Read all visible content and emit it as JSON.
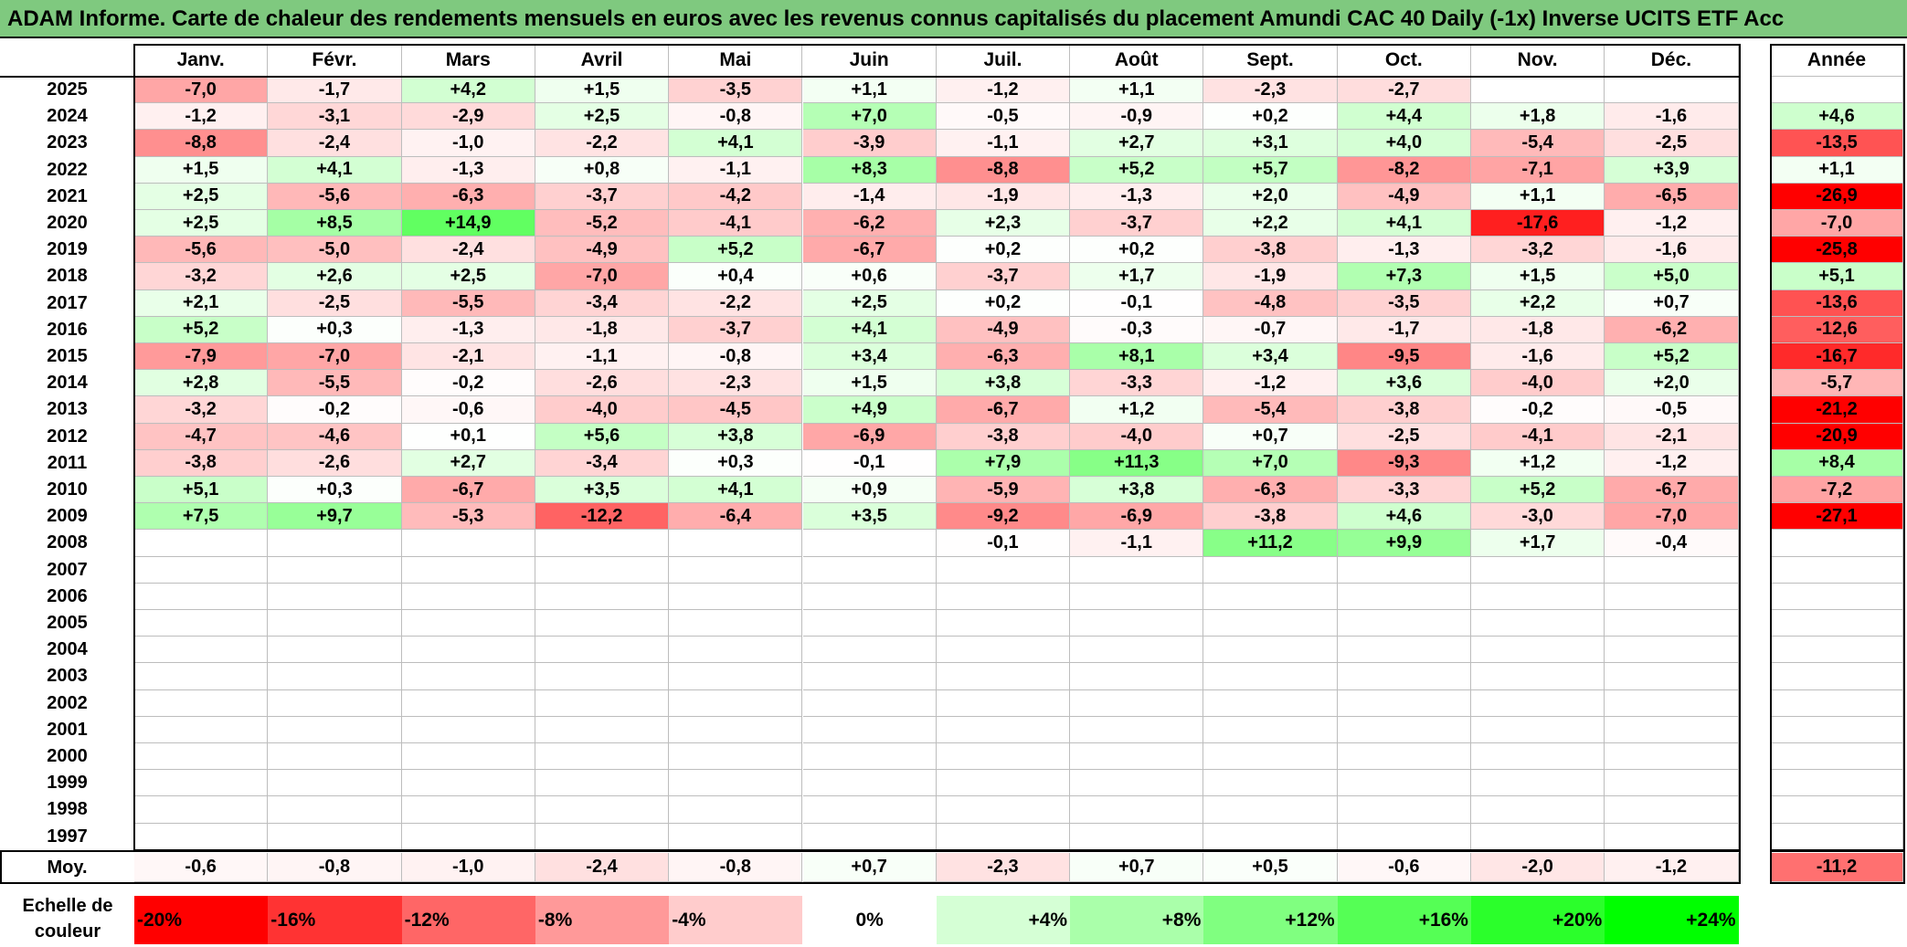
{
  "title": "ADAM Informe. Carte de chaleur des rendements mensuels en euros avec les revenus connus capitalisés du placement Amundi CAC 40 Daily (-1x) Inverse UCITS ETF Acc",
  "colors": {
    "title_bg": "#7fc97f",
    "positive": "#00ff00",
    "negative": "#ff0000"
  },
  "chart_data": {
    "type": "heatmap",
    "months": [
      "Janv.",
      "Févr.",
      "Mars",
      "Avril",
      "Mai",
      "Juin",
      "Juil.",
      "Août",
      "Sept.",
      "Oct.",
      "Nov.",
      "Déc."
    ],
    "annual_header": "Année",
    "rows": [
      {
        "year": "2025",
        "values": [
          "-7,0",
          "-1,7",
          "+4,2",
          "+1,5",
          "-3,5",
          "+1,1",
          "-1,2",
          "+1,1",
          "-2,3",
          "-2,7",
          "",
          ""
        ],
        "annual": ""
      },
      {
        "year": "2024",
        "values": [
          "-1,2",
          "-3,1",
          "-2,9",
          "+2,5",
          "-0,8",
          "+7,0",
          "-0,5",
          "-0,9",
          "+0,2",
          "+4,4",
          "+1,8",
          "-1,6"
        ],
        "annual": "+4,6"
      },
      {
        "year": "2023",
        "values": [
          "-8,8",
          "-2,4",
          "-1,0",
          "-2,2",
          "+4,1",
          "-3,9",
          "-1,1",
          "+2,7",
          "+3,1",
          "+4,0",
          "-5,4",
          "-2,5"
        ],
        "annual": "-13,5"
      },
      {
        "year": "2022",
        "values": [
          "+1,5",
          "+4,1",
          "-1,3",
          "+0,8",
          "-1,1",
          "+8,3",
          "-8,8",
          "+5,2",
          "+5,7",
          "-8,2",
          "-7,1",
          "+3,9"
        ],
        "annual": "+1,1"
      },
      {
        "year": "2021",
        "values": [
          "+2,5",
          "-5,6",
          "-6,3",
          "-3,7",
          "-4,2",
          "-1,4",
          "-1,9",
          "-1,3",
          "+2,0",
          "-4,9",
          "+1,1",
          "-6,5"
        ],
        "annual": "-26,9"
      },
      {
        "year": "2020",
        "values": [
          "+2,5",
          "+8,5",
          "+14,9",
          "-5,2",
          "-4,1",
          "-6,2",
          "+2,3",
          "-3,7",
          "+2,2",
          "+4,1",
          "-17,6",
          "-1,2"
        ],
        "annual": "-7,0"
      },
      {
        "year": "2019",
        "values": [
          "-5,6",
          "-5,0",
          "-2,4",
          "-4,9",
          "+5,2",
          "-6,7",
          "+0,2",
          "+0,2",
          "-3,8",
          "-1,3",
          "-3,2",
          "-1,6"
        ],
        "annual": "-25,8"
      },
      {
        "year": "2018",
        "values": [
          "-3,2",
          "+2,6",
          "+2,5",
          "-7,0",
          "+0,4",
          "+0,6",
          "-3,7",
          "+1,7",
          "-1,9",
          "+7,3",
          "+1,5",
          "+5,0"
        ],
        "annual": "+5,1"
      },
      {
        "year": "2017",
        "values": [
          "+2,1",
          "-2,5",
          "-5,5",
          "-3,4",
          "-2,2",
          "+2,5",
          "+0,2",
          "-0,1",
          "-4,8",
          "-3,5",
          "+2,2",
          "+0,7"
        ],
        "annual": "-13,6"
      },
      {
        "year": "2016",
        "values": [
          "+5,2",
          "+0,3",
          "-1,3",
          "-1,8",
          "-3,7",
          "+4,1",
          "-4,9",
          "-0,3",
          "-0,7",
          "-1,7",
          "-1,8",
          "-6,2"
        ],
        "annual": "-12,6"
      },
      {
        "year": "2015",
        "values": [
          "-7,9",
          "-7,0",
          "-2,1",
          "-1,1",
          "-0,8",
          "+3,4",
          "-6,3",
          "+8,1",
          "+3,4",
          "-9,5",
          "-1,6",
          "+5,2"
        ],
        "annual": "-16,7"
      },
      {
        "year": "2014",
        "values": [
          "+2,8",
          "-5,5",
          "-0,2",
          "-2,6",
          "-2,3",
          "+1,5",
          "+3,8",
          "-3,3",
          "-1,2",
          "+3,6",
          "-4,0",
          "+2,0"
        ],
        "annual": "-5,7"
      },
      {
        "year": "2013",
        "values": [
          "-3,2",
          "-0,2",
          "-0,6",
          "-4,0",
          "-4,5",
          "+4,9",
          "-6,7",
          "+1,2",
          "-5,4",
          "-3,8",
          "-0,2",
          "-0,5"
        ],
        "annual": "-21,2"
      },
      {
        "year": "2012",
        "values": [
          "-4,7",
          "-4,6",
          "+0,1",
          "+5,6",
          "+3,8",
          "-6,9",
          "-3,8",
          "-4,0",
          "+0,7",
          "-2,5",
          "-4,1",
          "-2,1"
        ],
        "annual": "-20,9"
      },
      {
        "year": "2011",
        "values": [
          "-3,8",
          "-2,6",
          "+2,7",
          "-3,4",
          "+0,3",
          "-0,1",
          "+7,9",
          "+11,3",
          "+7,0",
          "-9,3",
          "+1,2",
          "-1,2"
        ],
        "annual": "+8,4"
      },
      {
        "year": "2010",
        "values": [
          "+5,1",
          "+0,3",
          "-6,7",
          "+3,5",
          "+4,1",
          "+0,9",
          "-5,9",
          "+3,8",
          "-6,3",
          "-3,3",
          "+5,2",
          "-6,7"
        ],
        "annual": "-7,2"
      },
      {
        "year": "2009",
        "values": [
          "+7,5",
          "+9,7",
          "-5,3",
          "-12,2",
          "-6,4",
          "+3,5",
          "-9,2",
          "-6,9",
          "-3,8",
          "+4,6",
          "-3,0",
          "-7,0"
        ],
        "annual": "-27,1"
      },
      {
        "year": "2008",
        "values": [
          "",
          "",
          "",
          "",
          "",
          "",
          "-0,1",
          "-1,1",
          "+11,2",
          "+9,9",
          "+1,7",
          "-0,4"
        ],
        "annual": ""
      },
      {
        "year": "2007",
        "values": [
          "",
          "",
          "",
          "",
          "",
          "",
          "",
          "",
          "",
          "",
          "",
          ""
        ],
        "annual": ""
      },
      {
        "year": "2006",
        "values": [
          "",
          "",
          "",
          "",
          "",
          "",
          "",
          "",
          "",
          "",
          "",
          ""
        ],
        "annual": ""
      },
      {
        "year": "2005",
        "values": [
          "",
          "",
          "",
          "",
          "",
          "",
          "",
          "",
          "",
          "",
          "",
          ""
        ],
        "annual": ""
      },
      {
        "year": "2004",
        "values": [
          "",
          "",
          "",
          "",
          "",
          "",
          "",
          "",
          "",
          "",
          "",
          ""
        ],
        "annual": ""
      },
      {
        "year": "2003",
        "values": [
          "",
          "",
          "",
          "",
          "",
          "",
          "",
          "",
          "",
          "",
          "",
          ""
        ],
        "annual": ""
      },
      {
        "year": "2002",
        "values": [
          "",
          "",
          "",
          "",
          "",
          "",
          "",
          "",
          "",
          "",
          "",
          ""
        ],
        "annual": ""
      },
      {
        "year": "2001",
        "values": [
          "",
          "",
          "",
          "",
          "",
          "",
          "",
          "",
          "",
          "",
          "",
          ""
        ],
        "annual": ""
      },
      {
        "year": "2000",
        "values": [
          "",
          "",
          "",
          "",
          "",
          "",
          "",
          "",
          "",
          "",
          "",
          ""
        ],
        "annual": ""
      },
      {
        "year": "1999",
        "values": [
          "",
          "",
          "",
          "",
          "",
          "",
          "",
          "",
          "",
          "",
          "",
          ""
        ],
        "annual": ""
      },
      {
        "year": "1998",
        "values": [
          "",
          "",
          "",
          "",
          "",
          "",
          "",
          "",
          "",
          "",
          "",
          ""
        ],
        "annual": ""
      },
      {
        "year": "1997",
        "values": [
          "",
          "",
          "",
          "",
          "",
          "",
          "",
          "",
          "",
          "",
          "",
          ""
        ],
        "annual": ""
      }
    ],
    "average": {
      "label": "Moy.",
      "values": [
        "-0,6",
        "-0,8",
        "-1,0",
        "-2,4",
        "-0,8",
        "+0,7",
        "-2,3",
        "+0,7",
        "+0,5",
        "-0,6",
        "-2,0",
        "-1,2"
      ],
      "annual": "-11,2"
    },
    "scale": {
      "label": "Echelle de couleur",
      "values": [
        "-20%",
        "-16%",
        "-12%",
        "-8%",
        "-4%",
        "0%",
        "+4%",
        "+8%",
        "+12%",
        "+16%",
        "+20%",
        "+24%"
      ]
    }
  }
}
